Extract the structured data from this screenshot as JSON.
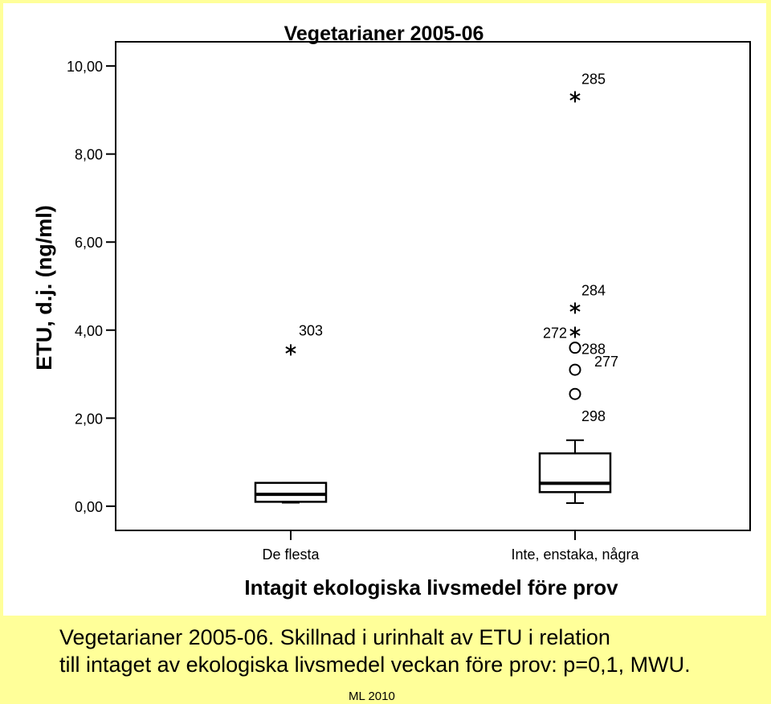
{
  "caption": {
    "line1": "Vegetarianer 2005-06. Skillnad i urinhalt av ETU i relation",
    "line2": "till intaget av ekologiska livsmedel veckan före prov: p=0,1, MWU."
  },
  "credit": "ML 2010",
  "chart_data": {
    "type": "boxplot",
    "title": "Vegetarianer 2005-06",
    "xlabel": "Intagit ekologiska livsmedel före prov",
    "ylabel": "ETU, d.j. (ng/ml)",
    "ylim": [
      -0.55,
      10.55
    ],
    "yticks": [
      0,
      2,
      4,
      6,
      8,
      10
    ],
    "ytick_labels": [
      "0,00",
      "2,00",
      "4,00",
      "6,00",
      "8,00",
      "10,00"
    ],
    "categories": [
      "De flesta",
      "Inte, enstaka, några"
    ],
    "boxes": [
      {
        "category": "De flesta",
        "whisker_low": 0.08,
        "q1": 0.1,
        "median": 0.27,
        "q3": 0.53,
        "whisker_high": 0.53,
        "outliers": [],
        "extremes": [
          {
            "value": 3.55,
            "label": "303"
          }
        ]
      },
      {
        "category": "Inte, enstaka, några",
        "whisker_low": 0.07,
        "q1": 0.32,
        "median": 0.52,
        "q3": 1.2,
        "whisker_high": 1.5,
        "outliers": [
          {
            "value": 3.6,
            "label": "288"
          },
          {
            "value": 3.1,
            "label": "277"
          },
          {
            "value": 2.55,
            "label": "298"
          }
        ],
        "extremes": [
          {
            "value": 9.3,
            "label": "285"
          },
          {
            "value": 4.5,
            "label": "284"
          },
          {
            "value": 3.95,
            "label": "272"
          }
        ]
      }
    ],
    "grid": false,
    "legend": "none"
  }
}
